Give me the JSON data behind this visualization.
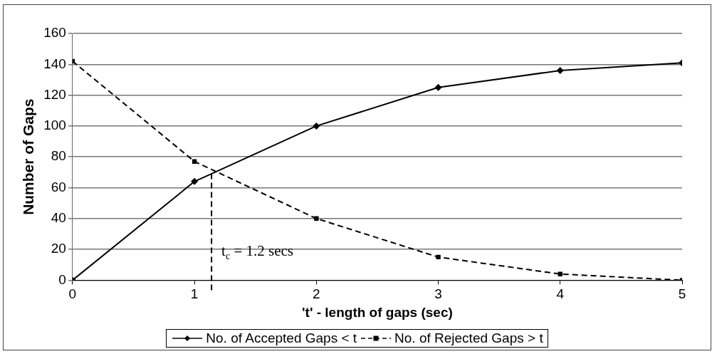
{
  "chart_data": {
    "type": "line",
    "xlabel": "'t' - length of gaps (sec)",
    "ylabel": "Number of Gaps",
    "x": [
      0,
      1,
      2,
      3,
      4,
      5
    ],
    "series": [
      {
        "name": "No. of Accepted Gaps < t",
        "color": "#000000",
        "values": [
          0,
          64,
          100,
          125,
          136,
          141
        ],
        "marker": "diamond",
        "line_style": "solid"
      },
      {
        "name": "No. of Rejected Gaps > t",
        "color": "#000000",
        "values": [
          142,
          77,
          40,
          15,
          4,
          0
        ],
        "marker": "square",
        "line_style": "dashed"
      }
    ],
    "xlim": [
      0,
      5
    ],
    "xticks": [
      0,
      1,
      2,
      3,
      4,
      5
    ],
    "ylim": [
      0,
      160
    ],
    "yticks": [
      0,
      20,
      40,
      60,
      80,
      100,
      120,
      140,
      160
    ],
    "grid": "y",
    "legend": "bottom",
    "ref_lines": [
      {
        "axis": "x",
        "value": 1.14,
        "line_style": "dashed",
        "color": "#000000"
      }
    ],
    "annotations": [
      "t$_{c}$ = 1.2 secs"
    ]
  }
}
